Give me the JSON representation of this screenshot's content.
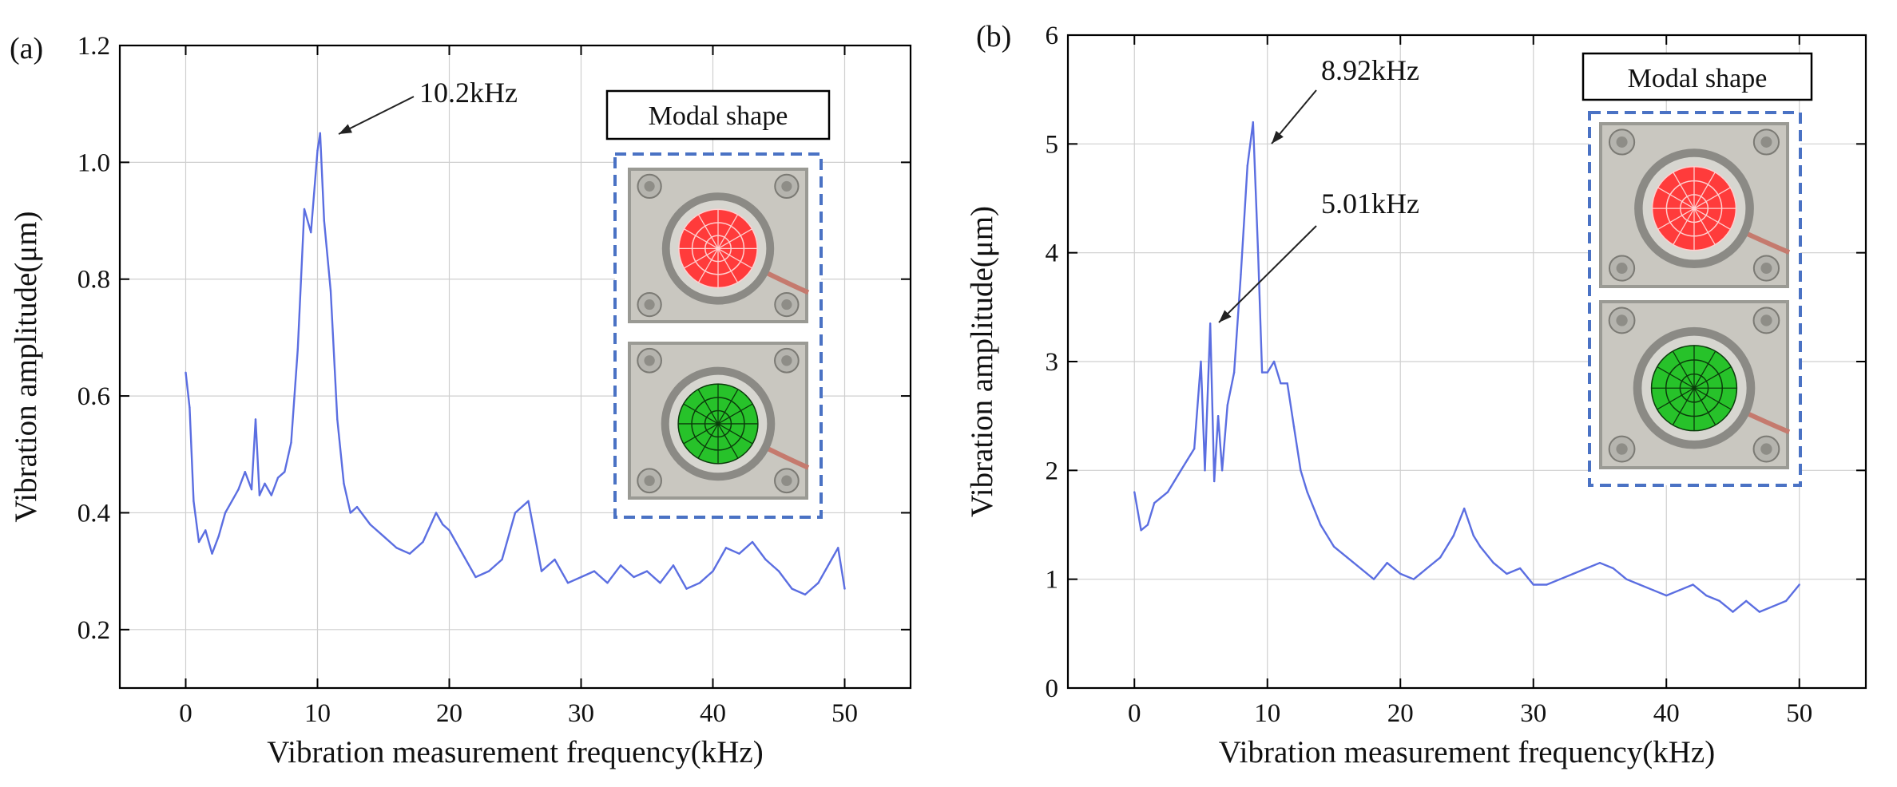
{
  "chart_data": [
    {
      "type": "line",
      "panel_label": "(a)",
      "xlabel": "Vibration measurement frequency(kHz)",
      "ylabel": "Vibration amplitude(μm)",
      "xlim": [
        -5,
        55
      ],
      "ylim": [
        0.1,
        1.2
      ],
      "xticks": [
        0,
        10,
        20,
        30,
        40,
        50
      ],
      "yticks": [
        0.2,
        0.4,
        0.6,
        0.8,
        1.0,
        1.2
      ],
      "ytick_labels": [
        "0.2",
        "0.4",
        "0.6",
        "0.8",
        "1.0",
        "1.2"
      ],
      "grid": true,
      "annotations": [
        {
          "text": "10.2kHz",
          "x": 10.2,
          "y": 1.05
        }
      ],
      "inset_label": "Modal shape",
      "series": [
        {
          "name": "Vibration amplitude",
          "color": "#5b6ee1",
          "x": [
            0,
            0.3,
            0.6,
            1.0,
            1.5,
            2.0,
            2.5,
            3.0,
            3.5,
            4.0,
            4.5,
            5.0,
            5.3,
            5.6,
            6.0,
            6.5,
            7.0,
            7.5,
            8.0,
            8.5,
            9.0,
            9.5,
            10.0,
            10.2,
            10.5,
            11.0,
            11.5,
            12.0,
            12.5,
            13.0,
            14.0,
            15.0,
            16.0,
            17.0,
            18.0,
            19.0,
            19.5,
            20.0,
            21.0,
            22.0,
            23.0,
            24.0,
            25.0,
            26.0,
            27.0,
            28.0,
            29.0,
            30.0,
            31.0,
            32.0,
            33.0,
            34.0,
            35.0,
            36.0,
            37.0,
            38.0,
            39.0,
            40.0,
            41.0,
            42.0,
            43.0,
            44.0,
            45.0,
            46.0,
            47.0,
            48.0,
            49.0,
            49.5,
            50.0
          ],
          "values": [
            0.64,
            0.58,
            0.42,
            0.35,
            0.37,
            0.33,
            0.36,
            0.4,
            0.42,
            0.44,
            0.47,
            0.44,
            0.56,
            0.43,
            0.45,
            0.43,
            0.46,
            0.47,
            0.52,
            0.68,
            0.92,
            0.88,
            1.02,
            1.05,
            0.9,
            0.78,
            0.56,
            0.45,
            0.4,
            0.41,
            0.38,
            0.36,
            0.34,
            0.33,
            0.35,
            0.4,
            0.38,
            0.37,
            0.33,
            0.29,
            0.3,
            0.32,
            0.4,
            0.42,
            0.3,
            0.32,
            0.28,
            0.29,
            0.3,
            0.28,
            0.31,
            0.29,
            0.3,
            0.28,
            0.31,
            0.27,
            0.28,
            0.3,
            0.34,
            0.33,
            0.35,
            0.32,
            0.3,
            0.27,
            0.26,
            0.28,
            0.32,
            0.34,
            0.27
          ]
        }
      ]
    },
    {
      "type": "line",
      "panel_label": "(b)",
      "xlabel": "Vibration measurement frequency(kHz)",
      "ylabel": "Vibration amplitude(μm)",
      "xlim": [
        -5,
        55
      ],
      "ylim": [
        0,
        6
      ],
      "xticks": [
        0,
        10,
        20,
        30,
        40,
        50
      ],
      "yticks": [
        0,
        1,
        2,
        3,
        4,
        5,
        6
      ],
      "ytick_labels": [
        "0",
        "1",
        "2",
        "3",
        "4",
        "5",
        "6"
      ],
      "grid": true,
      "annotations": [
        {
          "text": "8.92kHz",
          "x": 8.92,
          "y": 5.0
        },
        {
          "text": "5.01kHz",
          "x": 5.7,
          "y": 3.35
        }
      ],
      "inset_label": "Modal shape",
      "series": [
        {
          "name": "Vibration amplitude",
          "color": "#5b6ee1",
          "x": [
            0,
            0.5,
            1.0,
            1.5,
            2.0,
            2.5,
            3.0,
            3.5,
            4.0,
            4.5,
            5.0,
            5.3,
            5.7,
            6.0,
            6.3,
            6.6,
            7.0,
            7.5,
            8.0,
            8.5,
            8.92,
            9.3,
            9.6,
            10.0,
            10.5,
            11.0,
            11.5,
            12.0,
            12.5,
            13.0,
            14.0,
            15.0,
            16.0,
            17.0,
            18.0,
            19.0,
            20.0,
            21.0,
            22.0,
            23.0,
            24.0,
            24.8,
            25.5,
            26.0,
            27.0,
            28.0,
            29.0,
            30.0,
            31.0,
            32.0,
            33.0,
            34.0,
            35.0,
            36.0,
            37.0,
            38.0,
            39.0,
            40.0,
            41.0,
            42.0,
            43.0,
            44.0,
            45.0,
            46.0,
            47.0,
            48.0,
            49.0,
            50.0
          ],
          "values": [
            1.8,
            1.45,
            1.5,
            1.7,
            1.75,
            1.8,
            1.9,
            2.0,
            2.1,
            2.2,
            3.0,
            2.0,
            3.35,
            1.9,
            2.5,
            2.0,
            2.6,
            2.9,
            3.8,
            4.8,
            5.2,
            4.0,
            2.9,
            2.9,
            3.0,
            2.8,
            2.8,
            2.4,
            2.0,
            1.8,
            1.5,
            1.3,
            1.2,
            1.1,
            1.0,
            1.15,
            1.05,
            1.0,
            1.1,
            1.2,
            1.4,
            1.65,
            1.4,
            1.3,
            1.15,
            1.05,
            1.1,
            0.95,
            0.95,
            1.0,
            1.05,
            1.1,
            1.15,
            1.1,
            1.0,
            0.95,
            0.9,
            0.85,
            0.9,
            0.95,
            0.85,
            0.8,
            0.7,
            0.8,
            0.7,
            0.75,
            0.8,
            0.95
          ]
        }
      ]
    }
  ],
  "colors": {
    "line": "#5b6ee1",
    "inset_frame": "#4a72c4",
    "mode_red": "#ff3b3b",
    "mode_green": "#27c22a"
  }
}
